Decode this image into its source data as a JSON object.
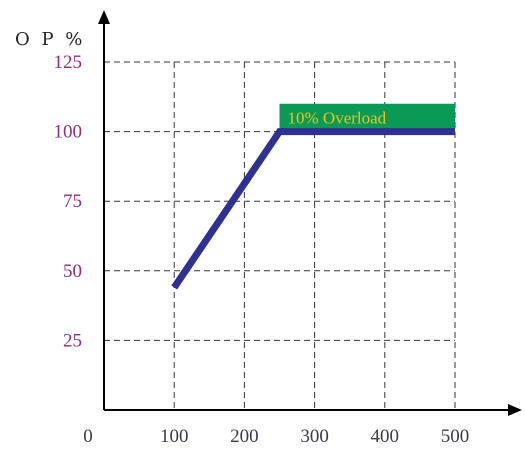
{
  "chart_data": {
    "type": "line",
    "title": "",
    "ylabel": "O P %",
    "xlabel": "",
    "x_ticks": [
      "0",
      "100",
      "200",
      "300",
      "400",
      "500"
    ],
    "y_ticks": [
      "25",
      "50",
      "75",
      "100",
      "125"
    ],
    "xlim": [
      0,
      500
    ],
    "ylim": [
      0,
      125
    ],
    "grid": true,
    "series": [
      {
        "x": [
          100,
          250,
          500
        ],
        "y": [
          44,
          100,
          100
        ]
      }
    ],
    "annotation": {
      "text": "10% Overload",
      "x_start": 250,
      "x_end": 500,
      "y_from": 100,
      "y_to": 110
    },
    "colors": {
      "line": "#2e3192",
      "overload_fill": "#0a9a55",
      "overload_text": "#f2c21b",
      "axis": "#000000",
      "grid": "#333333"
    }
  }
}
